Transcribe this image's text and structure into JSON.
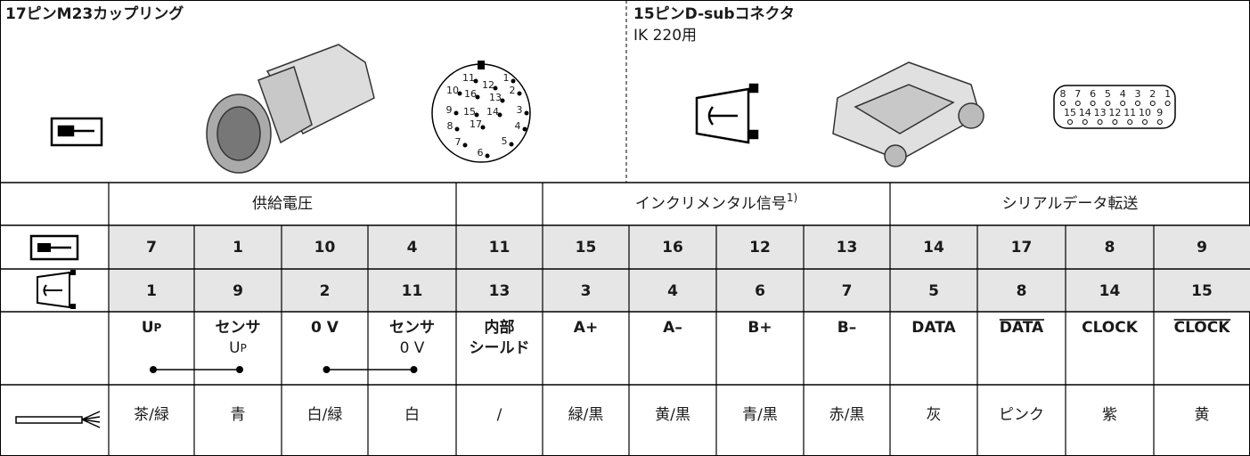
{
  "top": {
    "left": {
      "title": "17ピンM23カップリング",
      "pin_labels": [
        "11",
        "12",
        "1",
        "10",
        "16",
        "13",
        "2",
        "9",
        "15",
        "14",
        "3",
        "8",
        "17",
        "4",
        "7",
        "5",
        "6"
      ]
    },
    "right": {
      "title": "15ピンD-subコネクタ",
      "subtitle": "IK 220用",
      "pin_labels_top": [
        "8",
        "7",
        "6",
        "5",
        "4",
        "3",
        "2",
        "1"
      ],
      "pin_labels_bottom": [
        "15",
        "14",
        "13",
        "12",
        "11",
        "10",
        "9"
      ]
    }
  },
  "table": {
    "groups": [
      "供給電圧",
      "インクリメンタル信号",
      "シリアルデータ転送"
    ],
    "group_note": "1)",
    "m23_pins": [
      "7",
      "1",
      "10",
      "4",
      "11",
      "15",
      "16",
      "12",
      "13",
      "14",
      "17",
      "8",
      "9"
    ],
    "dsub_pins": [
      "1",
      "9",
      "2",
      "11",
      "13",
      "3",
      "4",
      "6",
      "7",
      "5",
      "8",
      "14",
      "15"
    ],
    "signals": [
      {
        "label": "U",
        "sub": "P"
      },
      {
        "label": "センサ",
        "line2": "U",
        "line2_sub": "P"
      },
      {
        "label": "0 V"
      },
      {
        "label": "センサ",
        "line2": "0 V"
      },
      {
        "label": "内部",
        "line2": "シールド"
      },
      {
        "label": "A+"
      },
      {
        "label": "A–"
      },
      {
        "label": "B+"
      },
      {
        "label": "B–"
      },
      {
        "label": "DATA"
      },
      {
        "label": "DATA",
        "overline": true
      },
      {
        "label": "CLOCK"
      },
      {
        "label": "CLOCK",
        "overline": true
      }
    ],
    "colors": [
      "茶/緑",
      "青",
      "白/緑",
      "白",
      "/",
      "緑/黒",
      "黄/黒",
      "青/黒",
      "赤/黒",
      "灰",
      "ピンク",
      "紫",
      "黄"
    ]
  }
}
